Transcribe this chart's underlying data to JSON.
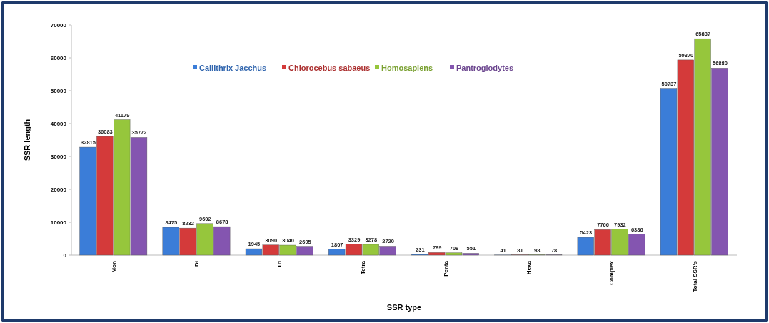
{
  "chart_data": {
    "type": "bar",
    "xlabel": "SSR type",
    "ylabel": "SSR length",
    "categories": [
      "Mon",
      "Di",
      "Tri",
      "Tetra",
      "Penta",
      "Hexa",
      "Complex",
      "Total SSR's"
    ],
    "series": [
      {
        "name": "Callithrix Jacchus",
        "color": "#3b7dd8",
        "values": [
          32815,
          8475,
          1945,
          1807,
          231,
          41,
          5423,
          50737
        ]
      },
      {
        "name": "Chlorocebus sabaeus",
        "color": "#d43a3a",
        "values": [
          36083,
          8232,
          3090,
          3329,
          789,
          81,
          7766,
          59370
        ]
      },
      {
        "name": "Homosapiens",
        "color": "#96c63c",
        "values": [
          41179,
          9602,
          3040,
          3278,
          708,
          98,
          7932,
          65837
        ]
      },
      {
        "name": "Pantroglodytes",
        "color": "#8455b0",
        "values": [
          35772,
          8678,
          2695,
          2720,
          551,
          78,
          6386,
          56880
        ]
      }
    ],
    "ylim": [
      0,
      70000
    ],
    "yticks": [
      0,
      10000,
      20000,
      30000,
      40000,
      50000,
      60000,
      70000
    ],
    "data_labels": true,
    "legend": "top",
    "grid": false
  }
}
